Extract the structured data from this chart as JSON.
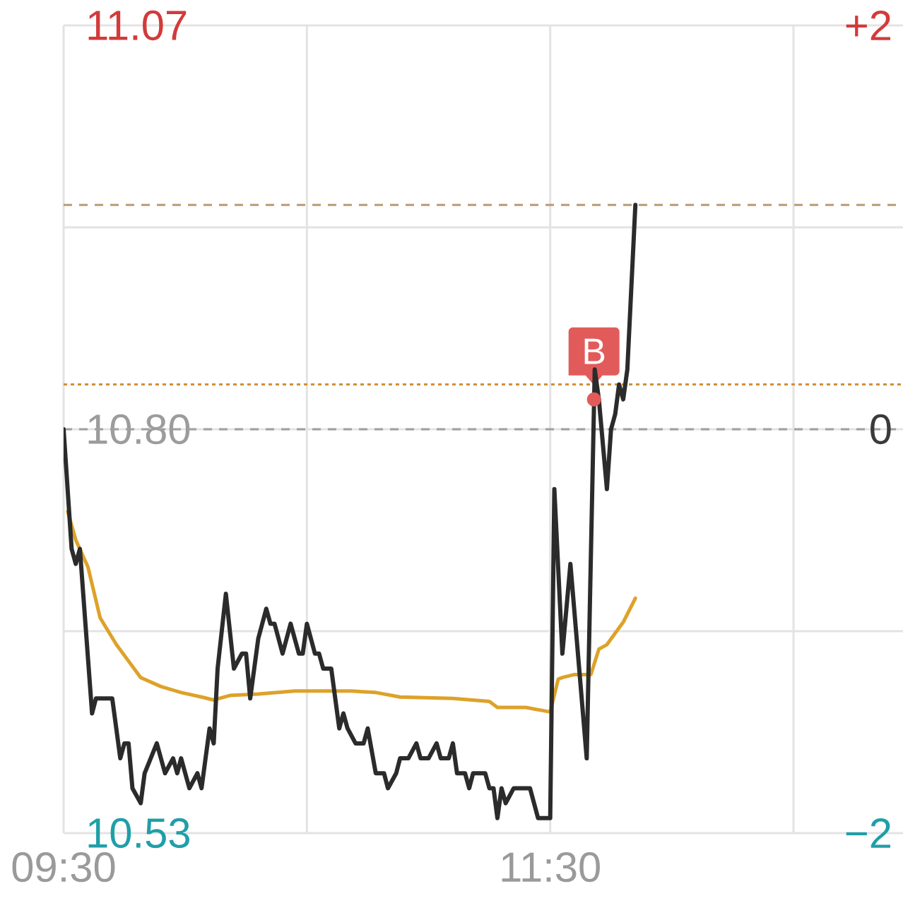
{
  "chart_data": {
    "type": "line",
    "xlim": [
      9.5,
      12.95
    ],
    "xticks": [
      {
        "value": 9.5,
        "label": "09:30"
      },
      {
        "value": 10.5,
        "label": null
      },
      {
        "value": 11.5,
        "label": "11:30"
      },
      {
        "value": 12.5,
        "label": null
      }
    ],
    "ylim": [
      10.53,
      11.07
    ],
    "yticks": [
      10.53,
      {
        "value": 10.665,
        "label": null
      },
      {
        "value": 10.8,
        "label": "10.80"
      },
      {
        "value": 10.935,
        "label": null
      },
      11.07
    ],
    "y2lim": [
      -2.5,
      2.5
    ],
    "y2ticks": [
      {
        "value": -2.5,
        "label": "−2"
      },
      {
        "value": 0,
        "label": "0"
      },
      {
        "value": 2.5,
        "label": "+2"
      }
    ],
    "grid": true,
    "ref_lines": [
      {
        "axis": "y",
        "value": 10.8,
        "color": "#a0a0a0",
        "line_style": "dashed"
      },
      {
        "axis": "y",
        "value": 10.95,
        "color": "#b89c74",
        "line_style": "dashed"
      },
      {
        "axis": "y",
        "value": 10.83,
        "color": "#d0903c",
        "line_style": "dotted"
      }
    ],
    "annotations": [
      {
        "text": "B",
        "x": 11.68,
        "y": 10.82
      }
    ],
    "series": [
      {
        "color": "#2b2b2b",
        "x": [
          9.5,
          9.533,
          9.55,
          9.567,
          9.617,
          9.633,
          9.7,
          9.733,
          9.75,
          9.767,
          9.783,
          9.817,
          9.833,
          9.883,
          9.917,
          9.95,
          9.967,
          9.983,
          10.017,
          10.05,
          10.067,
          10.1,
          10.117,
          10.133,
          10.167,
          10.2,
          10.233,
          10.25,
          10.267,
          10.3,
          10.333,
          10.35,
          10.367,
          10.4,
          10.433,
          10.467,
          10.483,
          10.5,
          10.533,
          10.55,
          10.567,
          10.6,
          10.633,
          10.65,
          10.667,
          10.7,
          10.733,
          10.75,
          10.783,
          10.817,
          10.833,
          10.867,
          10.883,
          10.917,
          10.95,
          10.967,
          11.0,
          11.033,
          11.05,
          11.083,
          11.1,
          11.117,
          11.15,
          11.167,
          11.183,
          11.233,
          11.25,
          11.267,
          11.283,
          11.3,
          11.317,
          11.35,
          11.417,
          11.45,
          11.483,
          11.5,
          11.517,
          11.55,
          11.583,
          11.65,
          11.683,
          11.7,
          11.733,
          11.75,
          11.767,
          11.783,
          11.8,
          11.817,
          11.85
        ],
        "values": [
          10.8,
          10.72,
          10.71,
          10.72,
          10.61,
          10.62,
          10.62,
          10.58,
          10.59,
          10.59,
          10.56,
          10.55,
          10.57,
          10.59,
          10.57,
          10.58,
          10.57,
          10.58,
          10.56,
          10.57,
          10.56,
          10.6,
          10.59,
          10.64,
          10.69,
          10.64,
          10.65,
          10.65,
          10.62,
          10.66,
          10.68,
          10.67,
          10.67,
          10.65,
          10.67,
          10.65,
          10.65,
          10.67,
          10.65,
          10.65,
          10.64,
          10.64,
          10.6,
          10.61,
          10.6,
          10.59,
          10.59,
          10.6,
          10.57,
          10.57,
          10.56,
          10.57,
          10.58,
          10.58,
          10.59,
          10.58,
          10.58,
          10.59,
          10.58,
          10.58,
          10.59,
          10.57,
          10.57,
          10.56,
          10.57,
          10.57,
          10.56,
          10.56,
          10.54,
          10.56,
          10.55,
          10.56,
          10.56,
          10.54,
          10.54,
          10.54,
          10.76,
          10.65,
          10.71,
          10.58,
          10.84,
          10.82,
          10.76,
          10.8,
          10.81,
          10.83,
          10.82,
          10.84,
          10.95
        ]
      },
      {
        "color": "#dda22a",
        "x": [
          9.517,
          9.55,
          9.6,
          9.65,
          9.717,
          9.767,
          9.817,
          9.9,
          9.983,
          10.067,
          10.117,
          10.183,
          10.3,
          10.45,
          10.683,
          10.783,
          10.883,
          11.1,
          11.25,
          11.283,
          11.4,
          11.5,
          11.533,
          11.55,
          11.6,
          11.667,
          11.7,
          11.733,
          11.8,
          11.85
        ],
        "values": [
          10.745,
          10.726,
          10.708,
          10.674,
          10.656,
          10.645,
          10.634,
          10.628,
          10.624,
          10.621,
          10.619,
          10.622,
          10.623,
          10.625,
          10.625,
          10.624,
          10.621,
          10.62,
          10.618,
          10.614,
          10.614,
          10.611,
          10.633,
          10.634,
          10.636,
          10.636,
          10.653,
          10.656,
          10.671,
          10.687
        ]
      }
    ]
  }
}
